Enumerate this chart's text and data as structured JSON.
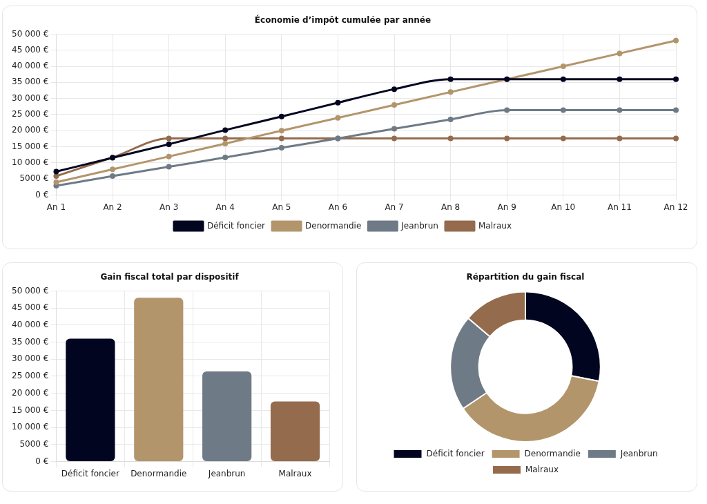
{
  "chart_data": [
    {
      "type": "line",
      "title": "Économie d’impôt cumulée par année",
      "categories": [
        "An 1",
        "An 2",
        "An 3",
        "An 4",
        "An 5",
        "An 6",
        "An 7",
        "An 8",
        "An 9",
        "An 10",
        "An 11",
        "An 12"
      ],
      "series": [
        {
          "name": "Déficit foncier",
          "color": "#020520",
          "values": [
            7300,
            11600,
            15800,
            20200,
            24400,
            28700,
            32900,
            36000,
            36000,
            36000,
            36000,
            36000
          ]
        },
        {
          "name": "Denormandie",
          "color": "#b3956c",
          "values": [
            4000,
            8000,
            12000,
            16000,
            20000,
            24000,
            28000,
            32000,
            36000,
            40000,
            44000,
            48000
          ]
        },
        {
          "name": "Jeanbrun",
          "color": "#6e7a86",
          "values": [
            2900,
            5900,
            8800,
            11700,
            14700,
            17600,
            20600,
            23500,
            26400,
            26400,
            26400,
            26400
          ]
        },
        {
          "name": "Malraux",
          "color": "#956b4d",
          "values": [
            5900,
            11700,
            17600,
            17600,
            17600,
            17600,
            17600,
            17600,
            17600,
            17600,
            17600,
            17600
          ]
        }
      ],
      "ylim": [
        0,
        50000
      ],
      "yticks": [
        {
          "value": 0,
          "label": "0 €"
        },
        {
          "value": 5000,
          "label": "5000 €"
        },
        {
          "value": 10000,
          "label": "10 000 €"
        },
        {
          "value": 15000,
          "label": "15 000 €"
        },
        {
          "value": 20000,
          "label": "20 000 €"
        },
        {
          "value": 25000,
          "label": "25 000 €"
        },
        {
          "value": 30000,
          "label": "30 000 €"
        },
        {
          "value": 35000,
          "label": "35 000 €"
        },
        {
          "value": 40000,
          "label": "40 000 €"
        },
        {
          "value": 45000,
          "label": "45 000 €"
        },
        {
          "value": 50000,
          "label": "50 000 €"
        }
      ],
      "grid": true,
      "legend": "bottom",
      "marker": "circle",
      "line_style": "solid"
    },
    {
      "type": "bar",
      "title": "Gain fiscal total par dispositif",
      "categories": [
        "Déficit foncier",
        "Denormandie",
        "Jeanbrun",
        "Malraux"
      ],
      "values": [
        36000,
        48000,
        26400,
        17600
      ],
      "colors": [
        "#020520",
        "#b3956c",
        "#6e7a86",
        "#956b4d"
      ],
      "ylim": [
        0,
        50000
      ],
      "yticks": [
        {
          "value": 0,
          "label": "0 €"
        },
        {
          "value": 5000,
          "label": "5000 €"
        },
        {
          "value": 10000,
          "label": "10 000 €"
        },
        {
          "value": 15000,
          "label": "15 000 €"
        },
        {
          "value": 20000,
          "label": "20 000 €"
        },
        {
          "value": 25000,
          "label": "25 000 €"
        },
        {
          "value": 30000,
          "label": "30 000 €"
        },
        {
          "value": 35000,
          "label": "35 000 €"
        },
        {
          "value": 40000,
          "label": "40 000 €"
        },
        {
          "value": 45000,
          "label": "45 000 €"
        },
        {
          "value": 50000,
          "label": "50 000 €"
        }
      ],
      "grid": true
    },
    {
      "type": "donut",
      "title": "Répartition du gain fiscal",
      "categories": [
        "Déficit foncier",
        "Denormandie",
        "Jeanbrun",
        "Malraux"
      ],
      "values": [
        28.1,
        37.5,
        20.6,
        13.8
      ],
      "colors": [
        "#020520",
        "#b3956c",
        "#6e7a86",
        "#956b4d"
      ],
      "legend": "bottom"
    }
  ]
}
